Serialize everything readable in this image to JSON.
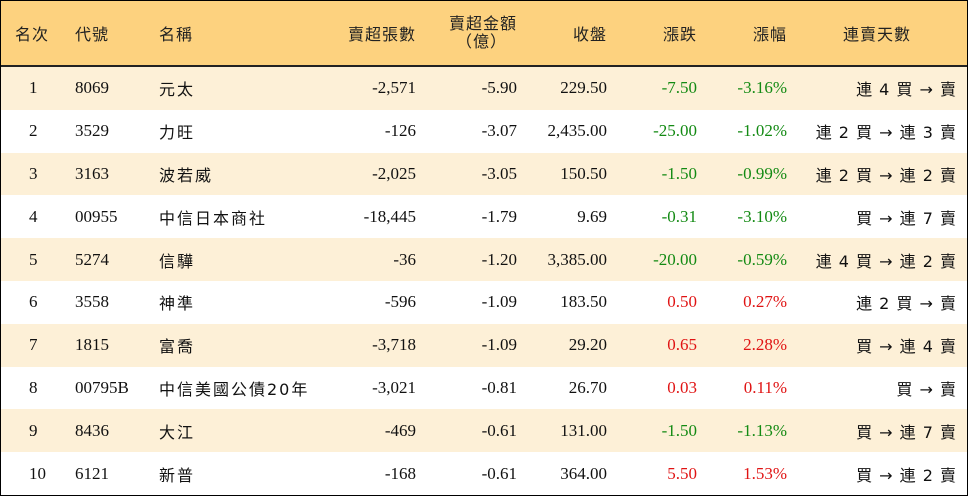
{
  "colors": {
    "header_bg": "#fdd27f",
    "band_bg": "#fdf0d7",
    "up": "#e01313",
    "down": "#138a13"
  },
  "headers": {
    "rank": "名次",
    "code": "代號",
    "name": "名稱",
    "net_sell_lots": "賣超張數",
    "net_sell_amount_line1": "賣超金額",
    "net_sell_amount_line2": "（億）",
    "close": "收盤",
    "change": "漲跌",
    "change_pct": "漲幅",
    "streak": "連賣天數"
  },
  "rows": [
    {
      "rank": "1",
      "code": "8069",
      "name": "元太",
      "lots": "-2,571",
      "amount": "-5.90",
      "close": "229.50",
      "change": "-7.50",
      "pct": "-3.16%",
      "streak": "連 4 買 → 賣",
      "dir": "down"
    },
    {
      "rank": "2",
      "code": "3529",
      "name": "力旺",
      "lots": "-126",
      "amount": "-3.07",
      "close": "2,435.00",
      "change": "-25.00",
      "pct": "-1.02%",
      "streak": "連 2 買 → 連 3 賣",
      "dir": "down"
    },
    {
      "rank": "3",
      "code": "3163",
      "name": "波若威",
      "lots": "-2,025",
      "amount": "-3.05",
      "close": "150.50",
      "change": "-1.50",
      "pct": "-0.99%",
      "streak": "連 2 買 → 連 2 賣",
      "dir": "down"
    },
    {
      "rank": "4",
      "code": "00955",
      "name": "中信日本商社",
      "lots": "-18,445",
      "amount": "-1.79",
      "close": "9.69",
      "change": "-0.31",
      "pct": "-3.10%",
      "streak": "買 → 連 7 賣",
      "dir": "down"
    },
    {
      "rank": "5",
      "code": "5274",
      "name": "信驊",
      "lots": "-36",
      "amount": "-1.20",
      "close": "3,385.00",
      "change": "-20.00",
      "pct": "-0.59%",
      "streak": "連 4 買 → 連 2 賣",
      "dir": "down"
    },
    {
      "rank": "6",
      "code": "3558",
      "name": "神準",
      "lots": "-596",
      "amount": "-1.09",
      "close": "183.50",
      "change": "0.50",
      "pct": "0.27%",
      "streak": "連 2 買 → 賣",
      "dir": "up"
    },
    {
      "rank": "7",
      "code": "1815",
      "name": "富喬",
      "lots": "-3,718",
      "amount": "-1.09",
      "close": "29.20",
      "change": "0.65",
      "pct": "2.28%",
      "streak": "買 → 連 4 賣",
      "dir": "up"
    },
    {
      "rank": "8",
      "code": "00795B",
      "name": "中信美國公債20年",
      "lots": "-3,021",
      "amount": "-0.81",
      "close": "26.70",
      "change": "0.03",
      "pct": "0.11%",
      "streak": "買 → 賣",
      "dir": "up"
    },
    {
      "rank": "9",
      "code": "8436",
      "name": "大江",
      "lots": "-469",
      "amount": "-0.61",
      "close": "131.00",
      "change": "-1.50",
      "pct": "-1.13%",
      "streak": "買 → 連 7 賣",
      "dir": "down"
    },
    {
      "rank": "10",
      "code": "6121",
      "name": "新普",
      "lots": "-168",
      "amount": "-0.61",
      "close": "364.00",
      "change": "5.50",
      "pct": "1.53%",
      "streak": "買 → 連 2 賣",
      "dir": "up"
    }
  ]
}
